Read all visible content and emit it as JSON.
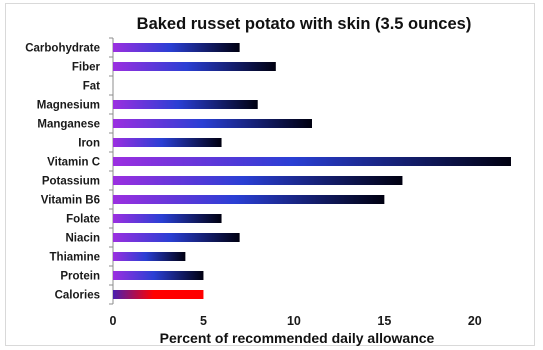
{
  "chart_data": {
    "type": "bar",
    "orientation": "horizontal",
    "title": "Baked russet potato with skin (3.5 ounces)",
    "xlabel": "Percent of recommended daily allowance",
    "ylabel": "",
    "xlim": [
      0,
      22
    ],
    "xticks": [
      0,
      5,
      10,
      15,
      20
    ],
    "grid": false,
    "categories": [
      "Carbohydrate",
      "Fiber",
      "Fat",
      "Magnesium",
      "Manganese",
      "Iron",
      "Vitamin C",
      "Potassium",
      "Vitamin B6",
      "Folate",
      "Niacin",
      "Thiamine",
      "Protein",
      "Calories"
    ],
    "values": [
      7,
      9,
      0,
      8,
      11,
      6,
      22,
      16,
      15,
      6,
      7,
      4,
      5,
      5
    ],
    "bar_gradient": [
      "#9b2fe0",
      "#2a3fd4",
      "#000010"
    ],
    "highlight": {
      "category": "Calories",
      "gradient": [
        "#4a1fb0",
        "#ff0000"
      ]
    }
  }
}
